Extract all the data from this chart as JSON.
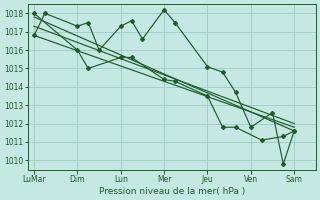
{
  "xlabel": "Pression niveau de la mer( hPa )",
  "bg_color": "#c5e8e2",
  "grid_color": "#9dccc4",
  "line_color": "#1e5c2a",
  "ylim": [
    1009.5,
    1018.5
  ],
  "yticks": [
    1010,
    1011,
    1012,
    1013,
    1014,
    1015,
    1016,
    1017,
    1018
  ],
  "x_labels": [
    "LuMar",
    "Dim",
    "Lun",
    "Mer",
    "Jeu",
    "Ven",
    "Sam"
  ],
  "x_tick_pos": [
    0,
    2,
    4,
    6,
    8,
    10,
    12
  ],
  "xlim": [
    -0.3,
    13.0
  ],
  "series1_x": [
    0,
    0.5,
    2.0,
    2.5,
    3.0,
    4.0,
    4.5,
    5.0,
    6.0,
    6.5,
    8.0,
    8.7,
    9.3,
    10.0,
    11.0,
    11.5,
    12.0
  ],
  "series1_y": [
    1016.8,
    1018.0,
    1017.3,
    1017.5,
    1016.0,
    1017.3,
    1017.6,
    1016.6,
    1018.2,
    1017.5,
    1015.1,
    1014.8,
    1013.7,
    1011.8,
    1012.6,
    1009.8,
    1011.6
  ],
  "series2_x": [
    0,
    2.0,
    2.5,
    4.0,
    4.5,
    6.0,
    6.5,
    8.0,
    8.7,
    9.3,
    10.5,
    11.5,
    12.0
  ],
  "series2_y": [
    1018.0,
    1016.0,
    1015.0,
    1015.6,
    1015.6,
    1014.4,
    1014.3,
    1013.5,
    1011.8,
    1011.8,
    1011.1,
    1011.3,
    1011.6
  ],
  "trend1_x": [
    0,
    12.0
  ],
  "trend1_y": [
    1017.8,
    1011.6
  ],
  "trend2_x": [
    0,
    12.0
  ],
  "trend2_y": [
    1016.8,
    1011.8
  ],
  "trend3_x": [
    0,
    12.0
  ],
  "trend3_y": [
    1017.3,
    1012.0
  ]
}
